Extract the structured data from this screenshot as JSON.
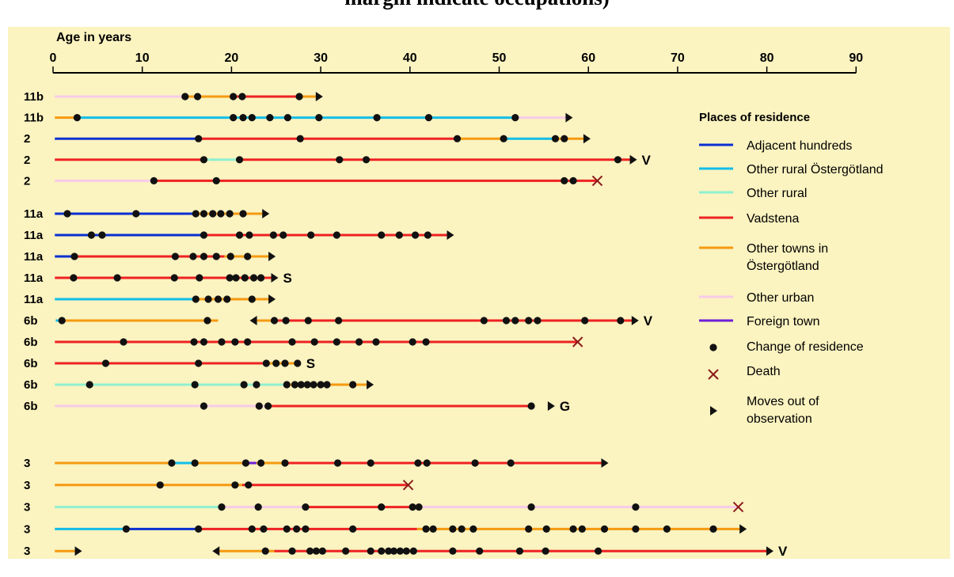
{
  "title": "margin indicate occupations)",
  "colors": {
    "background": "#fbf3c0",
    "Adjacent hundreds": "#0a2fd0",
    "Other rural Östergötland": "#12bde8",
    "Other rural": "#8ff0cf",
    "Vadstena": "#ee2222",
    "Other towns in Östergötland": "#f59a10",
    "Other urban": "#f7cbe8",
    "Foreign town": "#6e1fd8",
    "marker": "#111111",
    "death": "#8b1a1a"
  },
  "legend": {
    "title": "Places of residence",
    "items": [
      {
        "kind": "line",
        "key": "Adjacent hundreds",
        "lines": [
          "Adjacent hundreds"
        ]
      },
      {
        "kind": "line",
        "key": "Other rural Östergötland",
        "lines": [
          "Other rural Östergötland"
        ]
      },
      {
        "kind": "line",
        "key": "Other rural",
        "lines": [
          "Other rural"
        ]
      },
      {
        "kind": "line",
        "key": "Vadstena",
        "lines": [
          "Vadstena"
        ]
      },
      {
        "kind": "line",
        "key": "Other towns in Östergötland",
        "lines": [
          "Other towns in",
          "Östergötland"
        ]
      },
      {
        "kind": "line",
        "key": "Other urban",
        "lines": [
          "Other urban"
        ]
      },
      {
        "kind": "line",
        "key": "Foreign town",
        "lines": [
          "Foreign town"
        ]
      },
      {
        "kind": "dot",
        "key": "marker",
        "lines": [
          "Change of residence"
        ]
      },
      {
        "kind": "cross",
        "key": "death",
        "lines": [
          "Death"
        ]
      },
      {
        "kind": "arrow",
        "key": "marker",
        "lines": [
          "Moves out of",
          "observation"
        ]
      }
    ]
  },
  "chart_data": {
    "type": "timeline",
    "xlabel": "Age in years",
    "xlim": [
      0,
      90
    ],
    "xticks": [
      0,
      10,
      20,
      30,
      40,
      50,
      60,
      70,
      80,
      90
    ],
    "grid": false,
    "legend_position": "right",
    "rows": [
      {
        "group": 1,
        "label": "11b",
        "segments": [
          [
            "Other urban",
            0.2,
            14.5
          ],
          [
            "Other towns in Östergötland",
            14.5,
            19.8
          ],
          [
            "Vadstena",
            19.8,
            27.8
          ],
          [
            "Other towns in Östergötland",
            27.8,
            29.8
          ]
        ],
        "changes": [
          14.8,
          16.2,
          20.2,
          21.2,
          27.6
        ],
        "end": {
          "type": "arrow",
          "age": 29.8
        }
      },
      {
        "group": 1,
        "label": "11b",
        "segments": [
          [
            "Other towns in Östergötland",
            0.2,
            2.5
          ],
          [
            "Other rural Östergötland",
            2.5,
            51.8
          ],
          [
            "Other urban",
            51.8,
            57.8
          ]
        ],
        "changes": [
          2.7,
          20.2,
          21.3,
          22.3,
          24.3,
          26.3,
          29.8,
          36.3,
          42.1,
          51.8
        ],
        "end": {
          "type": "arrow",
          "age": 57.8
        }
      },
      {
        "group": 1,
        "label": "2",
        "segments": [
          [
            "Adjacent hundreds",
            0.2,
            16.2
          ],
          [
            "Vadstena",
            16.2,
            45.2
          ],
          [
            "Other towns in Östergötland",
            45.2,
            50.3
          ],
          [
            "Other rural Östergötland",
            50.3,
            56.2
          ],
          [
            "Other towns in Östergötland",
            56.2,
            59.8
          ]
        ],
        "changes": [
          16.3,
          27.7,
          45.3,
          50.5,
          56.3,
          57.3
        ],
        "end": {
          "type": "arrow",
          "age": 59.8
        }
      },
      {
        "group": 1,
        "label": "2",
        "segments": [
          [
            "Vadstena",
            0.2,
            16.8
          ],
          [
            "Other rural",
            16.8,
            20.8
          ],
          [
            "Vadstena",
            20.8,
            65.0
          ]
        ],
        "changes": [
          16.9,
          20.9,
          32.1,
          35.1,
          63.3
        ],
        "end": {
          "type": "arrow",
          "age": 65.0
        },
        "suffix": "V"
      },
      {
        "group": 1,
        "label": "2",
        "segments": [
          [
            "Other urban",
            0.2,
            11.2
          ],
          [
            "Vadstena",
            11.2,
            61.0
          ]
        ],
        "changes": [
          11.3,
          18.3,
          57.3,
          58.3
        ],
        "end": {
          "type": "death",
          "age": 61.0
        }
      },
      {
        "group": 2,
        "label": "11a",
        "segments": [
          [
            "Adjacent hundreds",
            0.2,
            15.8
          ],
          [
            "Other towns in Östergötland",
            15.8,
            23.8
          ]
        ],
        "changes": [
          1.6,
          9.3,
          16.0,
          16.9,
          17.9,
          18.8,
          19.8,
          21.3
        ],
        "end": {
          "type": "arrow",
          "age": 23.8
        }
      },
      {
        "group": 2,
        "label": "11a",
        "segments": [
          [
            "Adjacent hundreds",
            0.2,
            16.8
          ],
          [
            "Vadstena",
            16.8,
            44.5
          ]
        ],
        "changes": [
          4.3,
          5.5,
          16.9,
          20.9,
          22.0,
          24.7,
          25.8,
          28.9,
          31.8,
          36.8,
          38.8,
          40.6,
          42.0
        ],
        "end": {
          "type": "arrow",
          "age": 44.5
        }
      },
      {
        "group": 2,
        "label": "11a",
        "segments": [
          [
            "Adjacent hundreds",
            0.2,
            2.3
          ],
          [
            "Vadstena",
            2.3,
            19.2
          ],
          [
            "Other towns in Östergötland",
            19.2,
            24.5
          ]
        ],
        "changes": [
          2.4,
          13.7,
          15.7,
          16.9,
          18.3,
          19.9,
          21.8
        ],
        "end": {
          "type": "arrow",
          "age": 24.5
        }
      },
      {
        "group": 2,
        "label": "11a",
        "segments": [
          [
            "Vadstena",
            0.2,
            24.8
          ]
        ],
        "changes": [
          2.3,
          7.2,
          13.6,
          16.4,
          19.8,
          20.5,
          21.5,
          22.5,
          23.3
        ],
        "end": {
          "type": "arrow",
          "age": 24.8
        },
        "suffix": "S"
      },
      {
        "group": 2,
        "label": "11a",
        "segments": [
          [
            "Other rural Östergötland",
            0.2,
            15.8
          ],
          [
            "Other towns in Östergötland",
            15.8,
            24.5
          ]
        ],
        "changes": [
          16.0,
          17.4,
          18.5,
          19.5,
          22.3
        ],
        "end": {
          "type": "arrow",
          "age": 24.5
        }
      },
      {
        "group": 2,
        "label": "6b",
        "segments": [
          [
            "Other rural Östergötland",
            0.3,
            0.8
          ],
          [
            "Other towns in Östergötland",
            0.8,
            18.5
          ],
          [
            "Other towns in Östergötland",
            22.5,
            24.6
          ],
          [
            "Vadstena",
            24.6,
            65.2
          ]
        ],
        "changes": [
          1.0,
          17.3,
          24.8,
          26.1,
          28.6,
          32.0,
          48.3,
          50.8,
          51.8,
          53.3,
          54.3,
          59.6,
          63.6
        ],
        "end": {
          "type": "arrow",
          "age": 65.2
        },
        "suffix": "V",
        "reentries": [
          22.5
        ]
      },
      {
        "group": 2,
        "label": "6b",
        "segments": [
          [
            "Vadstena",
            0.2,
            58.8
          ]
        ],
        "changes": [
          7.9,
          15.8,
          16.9,
          18.9,
          20.4,
          21.8,
          26.8,
          29.3,
          31.8,
          34.3,
          36.2,
          40.3,
          41.8
        ],
        "end": {
          "type": "death",
          "age": 58.8
        }
      },
      {
        "group": 2,
        "label": "6b",
        "segments": [
          [
            "Vadstena",
            0.2,
            23.8
          ],
          [
            "Other towns in Östergötland",
            23.8,
            27.5
          ]
        ],
        "changes": [
          5.9,
          16.3,
          23.9,
          25.0,
          26.0,
          27.4
        ],
        "suffix": "S"
      },
      {
        "group": 2,
        "label": "6b",
        "segments": [
          [
            "Other rural",
            0.2,
            26.2
          ],
          [
            "Other towns in Östergötland",
            26.2,
            35.5
          ]
        ],
        "changes": [
          4.1,
          15.9,
          21.4,
          22.8,
          26.2,
          27.1,
          27.8,
          28.5,
          29.2,
          30.0,
          30.7,
          33.6
        ],
        "end": {
          "type": "arrow",
          "age": 35.5
        }
      },
      {
        "group": 2,
        "label": "6b",
        "segments": [
          [
            "Other urban",
            0.2,
            24.0
          ],
          [
            "Vadstena",
            24.0,
            53.6
          ]
        ],
        "changes": [
          16.9,
          23.1,
          24.1,
          53.6
        ],
        "end": {
          "type": "arrow",
          "age": 55.8
        },
        "suffix": "G"
      },
      {
        "group": 3,
        "label": "3",
        "segments": [
          [
            "Other towns in Östergötland",
            0.2,
            13.3
          ],
          [
            "Other rural Östergötland",
            13.3,
            15.7
          ],
          [
            "Other towns in Östergötland",
            15.7,
            21.2
          ],
          [
            "Foreign town",
            21.2,
            22.8
          ],
          [
            "Other towns in Östergötland",
            22.8,
            25.8
          ],
          [
            "Vadstena",
            25.8,
            61.8
          ]
        ],
        "changes": [
          13.3,
          15.9,
          21.6,
          23.3,
          26.0,
          31.9,
          35.6,
          40.9,
          41.9,
          47.3,
          51.3
        ],
        "end": {
          "type": "arrow",
          "age": 61.8
        }
      },
      {
        "group": 3,
        "label": "3",
        "segments": [
          [
            "Other towns in Östergötland",
            0.2,
            21.2
          ],
          [
            "Vadstena",
            21.2,
            39.8
          ]
        ],
        "changes": [
          12.0,
          20.4,
          21.9
        ],
        "end": {
          "type": "death",
          "age": 39.8
        }
      },
      {
        "group": 3,
        "label": "3",
        "segments": [
          [
            "Other rural",
            0.2,
            18.8
          ],
          [
            "Other urban",
            18.8,
            28.3
          ],
          [
            "Vadstena",
            28.3,
            40.0
          ],
          [
            "Other urban",
            40.0,
            76.8
          ]
        ],
        "changes": [
          18.9,
          23.0,
          28.3,
          36.8,
          40.3,
          41.0,
          53.6,
          65.3
        ],
        "end": {
          "type": "death",
          "age": 76.8
        }
      },
      {
        "group": 3,
        "label": "3",
        "segments": [
          [
            "Other rural Östergötland",
            0.2,
            8.0
          ],
          [
            "Adjacent hundreds",
            8.0,
            16.2
          ],
          [
            "Vadstena",
            16.2,
            40.8
          ],
          [
            "Other towns in Östergötland",
            40.8,
            77.3
          ]
        ],
        "changes": [
          8.2,
          16.3,
          22.3,
          23.6,
          26.2,
          27.3,
          28.3,
          33.6,
          41.8,
          42.6,
          44.8,
          45.8,
          47.1,
          53.3,
          55.3,
          58.3,
          59.3,
          61.8,
          65.3,
          68.8,
          74.0
        ],
        "end": {
          "type": "arrow",
          "age": 77.3
        }
      },
      {
        "group": 3,
        "label": "3",
        "segments": [
          [
            "Other towns in Östergötland",
            0.2,
            2.8
          ],
          [
            "Other towns in Östergötland",
            18.3,
            24.8
          ],
          [
            "Vadstena",
            24.8,
            80.3
          ]
        ],
        "changes": [
          23.8,
          26.8,
          28.8,
          29.5,
          30.2,
          32.8,
          35.6,
          36.8,
          37.6,
          38.2,
          38.9,
          39.6,
          40.4,
          44.8,
          47.8,
          52.3,
          55.2,
          61.1
        ],
        "end": {
          "type": "arrow",
          "age": 80.3
        },
        "suffix": "V",
        "early_arrow": 2.8,
        "reentries": [
          18.3
        ]
      }
    ]
  }
}
